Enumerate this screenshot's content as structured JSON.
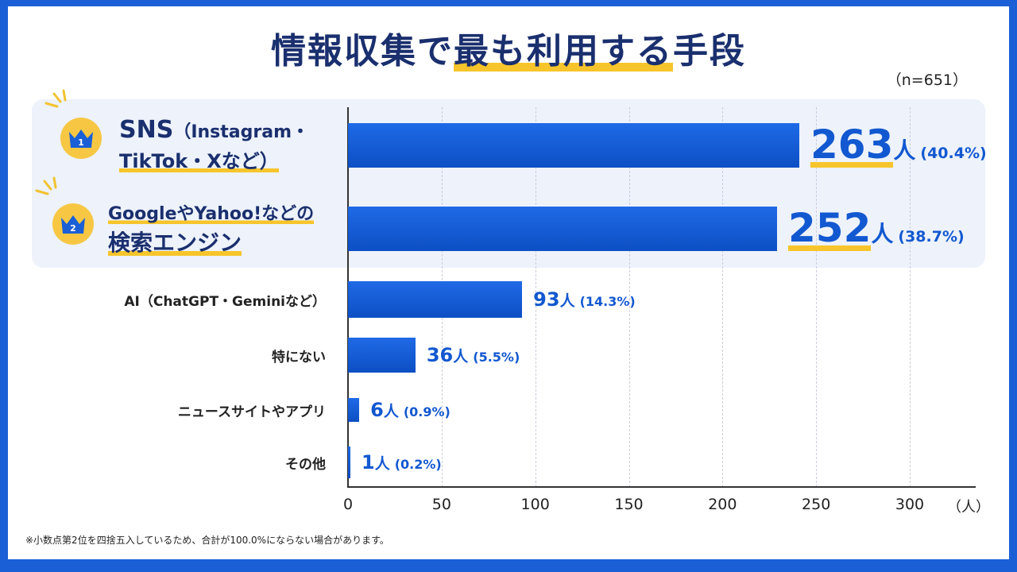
{
  "title_pre": "情報収集で",
  "title_hl": "最も利用する",
  "title_post": "手段",
  "sample": "（n=651）",
  "chart_data": {
    "type": "bar",
    "orientation": "horizontal",
    "title": "情報収集で最も利用する手段",
    "categories": [
      "SNS（Instagram・TikTok・Xなど）",
      "GoogleやYahoo!などの検索エンジン",
      "AI（ChatGPT・Geminiなど）",
      "特にない",
      "ニュースサイトやアプリ",
      "その他"
    ],
    "values": [
      263,
      252,
      93,
      36,
      6,
      1
    ],
    "percents": [
      "(40.4%)",
      "(38.7%)",
      "(14.3%)",
      "(5.5%)",
      "(0.9%)",
      "(0.2%)"
    ],
    "value_unit": "人",
    "xlim": [
      0,
      300
    ],
    "xticks": [
      "0",
      "50",
      "100",
      "150",
      "200",
      "250",
      "300"
    ],
    "xlabel": "（人）",
    "grid": true,
    "bar_color": "#1258d0"
  },
  "top": [
    {
      "rank": "1",
      "line1a": "SNS",
      "line1b": "（Instagram・",
      "line2": "TikTok・Xなど）"
    },
    {
      "rank": "2",
      "line1": "GoogleやYahoo!などの",
      "line2": "検索エンジン"
    }
  ],
  "note": "※小数点第2位を四捨五入しているため、合計が100.0%にならない場合があります。"
}
